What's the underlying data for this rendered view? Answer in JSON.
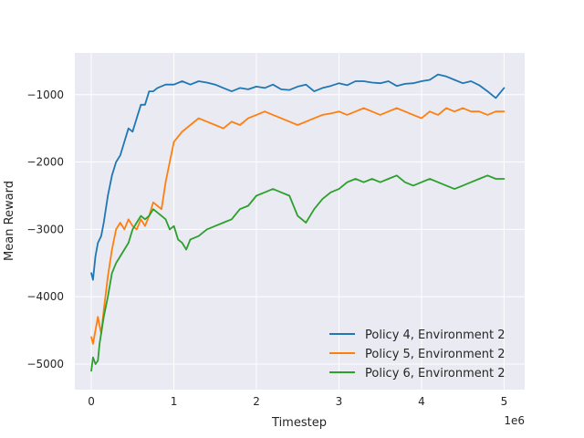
{
  "chart_data": {
    "type": "line",
    "xlabel": "Timestep",
    "ylabel": "Mean Reward",
    "x_multiplier_label": "1e6",
    "xlim": [
      -0.2,
      5.25
    ],
    "ylim": [
      -5380,
      -380
    ],
    "x_ticks": [
      0,
      1,
      2,
      3,
      4,
      5
    ],
    "y_ticks": [
      -5000,
      -4000,
      -3000,
      -2000,
      -1000
    ],
    "grid": true,
    "legend_position": "lower-right",
    "colors": {
      "background": "#eaeaf2",
      "grid": "#ffffff"
    },
    "series": [
      {
        "name": "Policy 4, Environment 2",
        "color": "#1f77b4",
        "x": [
          0.0,
          0.02,
          0.05,
          0.08,
          0.12,
          0.15,
          0.2,
          0.25,
          0.3,
          0.35,
          0.4,
          0.45,
          0.5,
          0.55,
          0.6,
          0.65,
          0.7,
          0.75,
          0.8,
          0.9,
          1.0,
          1.1,
          1.2,
          1.3,
          1.4,
          1.5,
          1.6,
          1.7,
          1.8,
          1.9,
          2.0,
          2.1,
          2.2,
          2.3,
          2.4,
          2.5,
          2.6,
          2.7,
          2.8,
          2.9,
          3.0,
          3.1,
          3.2,
          3.3,
          3.4,
          3.5,
          3.6,
          3.7,
          3.8,
          3.9,
          4.0,
          4.1,
          4.2,
          4.3,
          4.4,
          4.5,
          4.6,
          4.7,
          4.8,
          4.9,
          5.0
        ],
        "y": [
          -3650,
          -3750,
          -3400,
          -3200,
          -3100,
          -2900,
          -2500,
          -2200,
          -2000,
          -1900,
          -1700,
          -1500,
          -1550,
          -1350,
          -1150,
          -1150,
          -950,
          -950,
          -900,
          -850,
          -850,
          -800,
          -850,
          -800,
          -820,
          -850,
          -900,
          -950,
          -900,
          -920,
          -880,
          -900,
          -850,
          -920,
          -930,
          -880,
          -850,
          -950,
          -900,
          -870,
          -830,
          -860,
          -800,
          -800,
          -820,
          -830,
          -800,
          -870,
          -840,
          -830,
          -800,
          -780,
          -700,
          -730,
          -780,
          -830,
          -800,
          -860,
          -950,
          -1050,
          -900
        ]
      },
      {
        "name": "Policy 5, Environment 2",
        "color": "#ff7f0e",
        "x": [
          0.0,
          0.02,
          0.05,
          0.08,
          0.12,
          0.15,
          0.2,
          0.25,
          0.3,
          0.35,
          0.4,
          0.45,
          0.5,
          0.55,
          0.6,
          0.65,
          0.7,
          0.75,
          0.8,
          0.85,
          0.9,
          0.95,
          1.0,
          1.1,
          1.2,
          1.3,
          1.4,
          1.5,
          1.6,
          1.7,
          1.8,
          1.9,
          2.0,
          2.1,
          2.2,
          2.3,
          2.4,
          2.5,
          2.6,
          2.7,
          2.8,
          2.9,
          3.0,
          3.1,
          3.2,
          3.3,
          3.4,
          3.5,
          3.6,
          3.7,
          3.8,
          3.9,
          4.0,
          4.1,
          4.2,
          4.3,
          4.4,
          4.5,
          4.6,
          4.7,
          4.8,
          4.9,
          5.0
        ],
        "y": [
          -4600,
          -4700,
          -4500,
          -4300,
          -4550,
          -4200,
          -3700,
          -3300,
          -3000,
          -2900,
          -3000,
          -2850,
          -2950,
          -3000,
          -2850,
          -2950,
          -2800,
          -2600,
          -2650,
          -2700,
          -2300,
          -2000,
          -1700,
          -1550,
          -1450,
          -1350,
          -1400,
          -1450,
          -1500,
          -1400,
          -1450,
          -1350,
          -1300,
          -1250,
          -1300,
          -1350,
          -1400,
          -1450,
          -1400,
          -1350,
          -1300,
          -1280,
          -1250,
          -1300,
          -1250,
          -1200,
          -1250,
          -1300,
          -1250,
          -1200,
          -1250,
          -1300,
          -1350,
          -1250,
          -1300,
          -1200,
          -1250,
          -1200,
          -1250,
          -1250,
          -1300,
          -1250,
          -1250
        ]
      },
      {
        "name": "Policy 6, Environment 2",
        "color": "#2ca02c",
        "x": [
          0.0,
          0.02,
          0.05,
          0.08,
          0.1,
          0.15,
          0.2,
          0.25,
          0.3,
          0.35,
          0.4,
          0.45,
          0.5,
          0.55,
          0.6,
          0.65,
          0.7,
          0.75,
          0.8,
          0.85,
          0.9,
          0.95,
          1.0,
          1.05,
          1.1,
          1.15,
          1.2,
          1.3,
          1.4,
          1.5,
          1.6,
          1.7,
          1.8,
          1.9,
          2.0,
          2.1,
          2.2,
          2.3,
          2.4,
          2.5,
          2.6,
          2.7,
          2.8,
          2.9,
          3.0,
          3.1,
          3.2,
          3.3,
          3.4,
          3.5,
          3.6,
          3.7,
          3.8,
          3.9,
          4.0,
          4.1,
          4.2,
          4.3,
          4.4,
          4.5,
          4.6,
          4.7,
          4.8,
          4.9,
          5.0
        ],
        "y": [
          -5100,
          -4900,
          -5000,
          -4950,
          -4700,
          -4300,
          -4000,
          -3650,
          -3500,
          -3400,
          -3300,
          -3200,
          -3000,
          -2900,
          -2800,
          -2850,
          -2800,
          -2700,
          -2750,
          -2800,
          -2850,
          -3000,
          -2950,
          -3150,
          -3200,
          -3300,
          -3150,
          -3100,
          -3000,
          -2950,
          -2900,
          -2850,
          -2700,
          -2650,
          -2500,
          -2450,
          -2400,
          -2450,
          -2500,
          -2800,
          -2900,
          -2700,
          -2550,
          -2450,
          -2400,
          -2300,
          -2250,
          -2300,
          -2250,
          -2300,
          -2250,
          -2200,
          -2300,
          -2350,
          -2300,
          -2250,
          -2300,
          -2350,
          -2400,
          -2350,
          -2300,
          -2250,
          -2200,
          -2250,
          -2250
        ]
      }
    ]
  }
}
